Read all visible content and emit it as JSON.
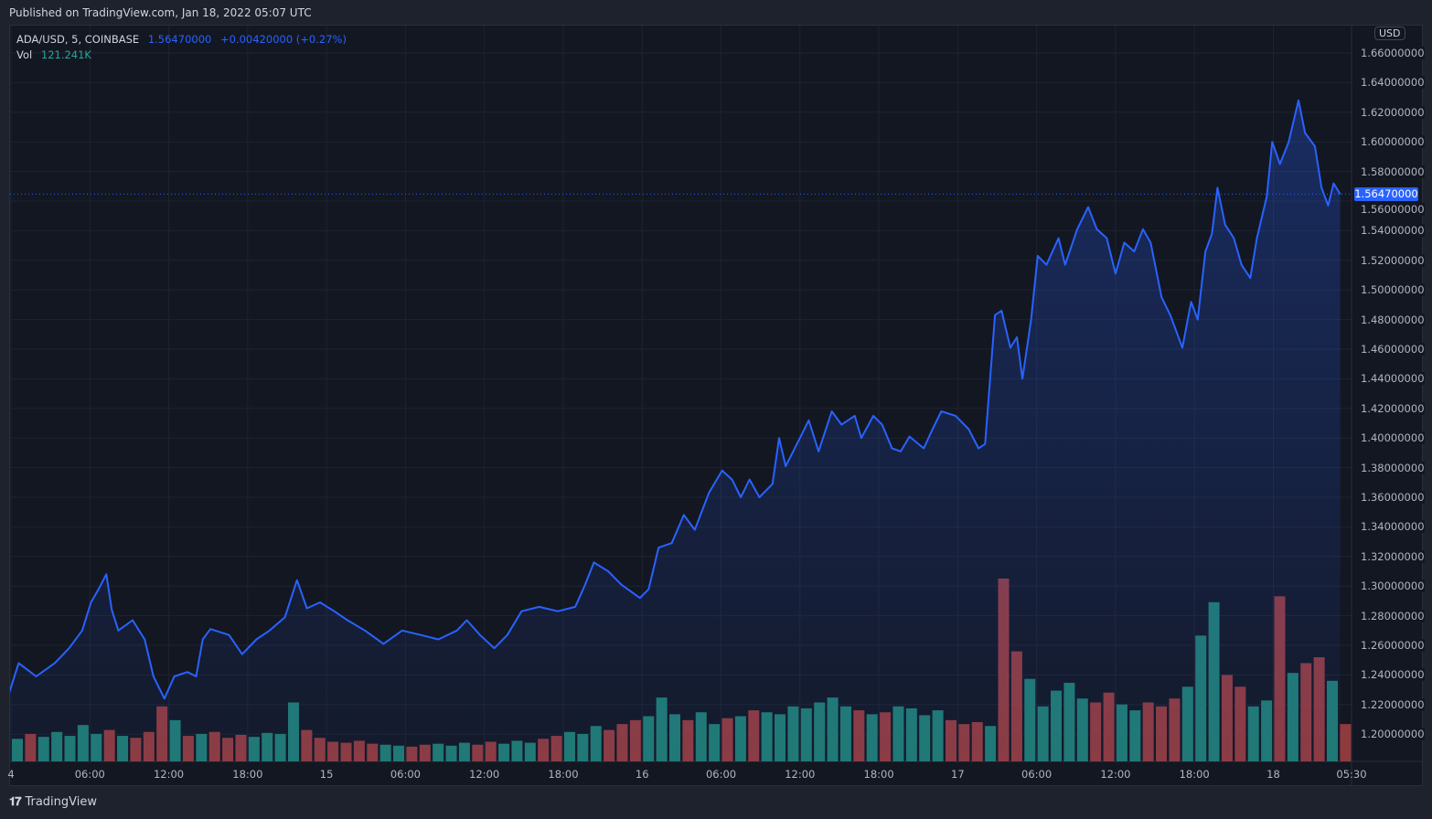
{
  "header": {
    "published": "Published on TradingView.com, Jan 18, 2022 05:07 UTC"
  },
  "legend": {
    "symbol": "ADA/USD, 5, COINBASE",
    "price": "1.56470000",
    "change": "+0.00420000 (+0.27%)",
    "vol_label": "Vol",
    "vol_value": "121.241K"
  },
  "price_axis": {
    "currency": "USD",
    "current_price": "1.56470000",
    "labels": [
      "1.66000000",
      "1.64000000",
      "1.62000000",
      "1.60000000",
      "1.58000000",
      "1.56000000",
      "1.54000000",
      "1.52000000",
      "1.50000000",
      "1.48000000",
      "1.46000000",
      "1.44000000",
      "1.42000000",
      "1.40000000",
      "1.38000000",
      "1.36000000",
      "1.34000000",
      "1.32000000",
      "1.30000000",
      "1.28000000",
      "1.26000000",
      "1.24000000",
      "1.22000000",
      "1.20000000"
    ]
  },
  "time_axis": {
    "labels": [
      "4",
      "06:00",
      "12:00",
      "18:00",
      "15",
      "06:00",
      "12:00",
      "18:00",
      "16",
      "06:00",
      "12:00",
      "18:00",
      "17",
      "06:00",
      "12:00",
      "18:00",
      "18",
      "05:30"
    ]
  },
  "footer": {
    "brand": "TradingView",
    "logo": "TV"
  },
  "colors": {
    "line": "#2962ff",
    "up_volume": "#26a69a",
    "down_volume": "#ef5350",
    "background": "#131722"
  },
  "chart_data": {
    "type": "area",
    "title": "ADA/USD, 5, COINBASE",
    "ylim": [
      1.19,
      1.67
    ],
    "grid": true,
    "series": [
      {
        "name": "ADA/USD",
        "points": [
          [
            "2022-01-13T23:50",
            1.227
          ],
          [
            "2022-01-14T00:35",
            1.248
          ],
          [
            "2022-01-14T01:55",
            1.239
          ],
          [
            "2022-01-14T03:20",
            1.248
          ],
          [
            "2022-01-14T04:25",
            1.258
          ],
          [
            "2022-01-14T05:25",
            1.27
          ],
          [
            "2022-01-14T06:05",
            1.289
          ],
          [
            "2022-01-14T06:40",
            1.298
          ],
          [
            "2022-01-14T07:15",
            1.308
          ],
          [
            "2022-01-14T07:40",
            1.284
          ],
          [
            "2022-01-14T08:10",
            1.27
          ],
          [
            "2022-01-14T09:15",
            1.277
          ],
          [
            "2022-01-14T10:10",
            1.264
          ],
          [
            "2022-01-14T10:50",
            1.239
          ],
          [
            "2022-01-14T11:40",
            1.224
          ],
          [
            "2022-01-14T12:25",
            1.239
          ],
          [
            "2022-01-14T13:25",
            1.242
          ],
          [
            "2022-01-14T14:05",
            1.239
          ],
          [
            "2022-01-14T14:35",
            1.264
          ],
          [
            "2022-01-14T15:10",
            1.271
          ],
          [
            "2022-01-14T16:35",
            1.267
          ],
          [
            "2022-01-14T17:35",
            1.254
          ],
          [
            "2022-01-14T18:40",
            1.264
          ],
          [
            "2022-01-14T19:40",
            1.27
          ],
          [
            "2022-01-14T20:50",
            1.279
          ],
          [
            "2022-01-14T21:45",
            1.304
          ],
          [
            "2022-01-14T22:30",
            1.285
          ],
          [
            "2022-01-14T23:30",
            1.289
          ],
          [
            "2022-01-15T00:35",
            1.283
          ],
          [
            "2022-01-15T01:35",
            1.277
          ],
          [
            "2022-01-15T02:55",
            1.27
          ],
          [
            "2022-01-15T04:20",
            1.261
          ],
          [
            "2022-01-15T05:45",
            1.27
          ],
          [
            "2022-01-15T07:10",
            1.267
          ],
          [
            "2022-01-15T08:30",
            1.264
          ],
          [
            "2022-01-15T09:55",
            1.27
          ],
          [
            "2022-01-15T10:40",
            1.277
          ],
          [
            "2022-01-15T11:40",
            1.267
          ],
          [
            "2022-01-15T12:45",
            1.258
          ],
          [
            "2022-01-15T13:45",
            1.267
          ],
          [
            "2022-01-15T14:50",
            1.283
          ],
          [
            "2022-01-15T16:10",
            1.286
          ],
          [
            "2022-01-15T17:35",
            1.283
          ],
          [
            "2022-01-15T18:55",
            1.286
          ],
          [
            "2022-01-15T19:40",
            1.301
          ],
          [
            "2022-01-15T20:20",
            1.316
          ],
          [
            "2022-01-15T21:25",
            1.31
          ],
          [
            "2022-01-15T22:25",
            1.301
          ],
          [
            "2022-01-15T23:50",
            1.292
          ],
          [
            "2022-01-16T00:30",
            1.298
          ],
          [
            "2022-01-16T01:15",
            1.326
          ],
          [
            "2022-01-16T02:15",
            1.329
          ],
          [
            "2022-01-16T03:10",
            1.348
          ],
          [
            "2022-01-16T04:00",
            1.338
          ],
          [
            "2022-01-16T05:05",
            1.363
          ],
          [
            "2022-01-16T06:05",
            1.378
          ],
          [
            "2022-01-16T06:50",
            1.372
          ],
          [
            "2022-01-16T07:30",
            1.36
          ],
          [
            "2022-01-16T08:10",
            1.372
          ],
          [
            "2022-01-16T08:55",
            1.36
          ],
          [
            "2022-01-16T09:55",
            1.369
          ],
          [
            "2022-01-16T10:25",
            1.4
          ],
          [
            "2022-01-16T10:55",
            1.381
          ],
          [
            "2022-01-16T12:00",
            1.4
          ],
          [
            "2022-01-16T12:40",
            1.412
          ],
          [
            "2022-01-16T13:25",
            1.391
          ],
          [
            "2022-01-16T14:25",
            1.418
          ],
          [
            "2022-01-16T15:10",
            1.409
          ],
          [
            "2022-01-16T16:10",
            1.415
          ],
          [
            "2022-01-16T16:40",
            1.4
          ],
          [
            "2022-01-16T17:35",
            1.415
          ],
          [
            "2022-01-16T18:15",
            1.409
          ],
          [
            "2022-01-16T19:00",
            1.393
          ],
          [
            "2022-01-16T19:40",
            1.391
          ],
          [
            "2022-01-16T20:20",
            1.401
          ],
          [
            "2022-01-16T21:25",
            1.393
          ],
          [
            "2022-01-16T22:05",
            1.406
          ],
          [
            "2022-01-16T22:45",
            1.418
          ],
          [
            "2022-01-16T23:50",
            1.415
          ],
          [
            "2022-01-17T00:50",
            1.406
          ],
          [
            "2022-01-17T01:35",
            1.393
          ],
          [
            "2022-01-17T02:05",
            1.396
          ],
          [
            "2022-01-17T02:50",
            1.483
          ],
          [
            "2022-01-17T03:20",
            1.486
          ],
          [
            "2022-01-17T04:00",
            1.461
          ],
          [
            "2022-01-17T04:30",
            1.468
          ],
          [
            "2022-01-17T04:55",
            1.44
          ],
          [
            "2022-01-17T05:35",
            1.48
          ],
          [
            "2022-01-17T06:05",
            1.523
          ],
          [
            "2022-01-17T06:45",
            1.517
          ],
          [
            "2022-01-17T07:40",
            1.535
          ],
          [
            "2022-01-17T08:10",
            1.517
          ],
          [
            "2022-01-17T09:05",
            1.541
          ],
          [
            "2022-01-17T09:55",
            1.556
          ],
          [
            "2022-01-17T10:35",
            1.541
          ],
          [
            "2022-01-17T11:20",
            1.535
          ],
          [
            "2022-01-17T12:00",
            1.511
          ],
          [
            "2022-01-17T12:40",
            1.532
          ],
          [
            "2022-01-17T13:25",
            1.526
          ],
          [
            "2022-01-17T14:05",
            1.541
          ],
          [
            "2022-01-17T14:40",
            1.532
          ],
          [
            "2022-01-17T15:30",
            1.495
          ],
          [
            "2022-01-17T16:10",
            1.483
          ],
          [
            "2022-01-17T17:05",
            1.461
          ],
          [
            "2022-01-17T17:45",
            1.492
          ],
          [
            "2022-01-17T18:15",
            1.48
          ],
          [
            "2022-01-17T18:50",
            1.526
          ],
          [
            "2022-01-17T19:20",
            1.538
          ],
          [
            "2022-01-17T19:45",
            1.569
          ],
          [
            "2022-01-17T20:20",
            1.544
          ],
          [
            "2022-01-17T21:00",
            1.535
          ],
          [
            "2022-01-17T21:35",
            1.517
          ],
          [
            "2022-01-17T22:15",
            1.508
          ],
          [
            "2022-01-17T22:45",
            1.535
          ],
          [
            "2022-01-17T23:30",
            1.563
          ],
          [
            "2022-01-17T23:55",
            1.6
          ],
          [
            "2022-01-18T00:30",
            1.585
          ],
          [
            "2022-01-18T01:10",
            1.6
          ],
          [
            "2022-01-18T01:55",
            1.628
          ],
          [
            "2022-01-18T02:25",
            1.606
          ],
          [
            "2022-01-18T03:10",
            1.597
          ],
          [
            "2022-01-18T03:40",
            1.569
          ],
          [
            "2022-01-18T04:10",
            1.557
          ],
          [
            "2022-01-18T04:35",
            1.572
          ],
          [
            "2022-01-18T05:05",
            1.5647
          ]
        ]
      }
    ],
    "volume": {
      "name": "Vol",
      "unit": "K",
      "interval": "1h",
      "start": "2022-01-14T00:00",
      "values": [
        230,
        280,
        250,
        300,
        260,
        370,
        280,
        320,
        260,
        240,
        300,
        560,
        420,
        260,
        280,
        300,
        240,
        270,
        250,
        290,
        280,
        600,
        320,
        240,
        200,
        190,
        210,
        180,
        170,
        160,
        150,
        170,
        180,
        160,
        190,
        170,
        200,
        180,
        210,
        190,
        230,
        260,
        300,
        280,
        360,
        320,
        380,
        420,
        460,
        650,
        480,
        420,
        500,
        380,
        440,
        460,
        520,
        500,
        480,
        560,
        540,
        600,
        650,
        560,
        520,
        480,
        500,
        560,
        540,
        470,
        520,
        420,
        380,
        400,
        360,
        1860,
        1120,
        840,
        560,
        720,
        800,
        640,
        600,
        700,
        580,
        520,
        600,
        560,
        640,
        760,
        1280,
        1620,
        880,
        760,
        560,
        620,
        1680,
        900,
        1000,
        1060,
        820,
        380
      ]
    }
  }
}
